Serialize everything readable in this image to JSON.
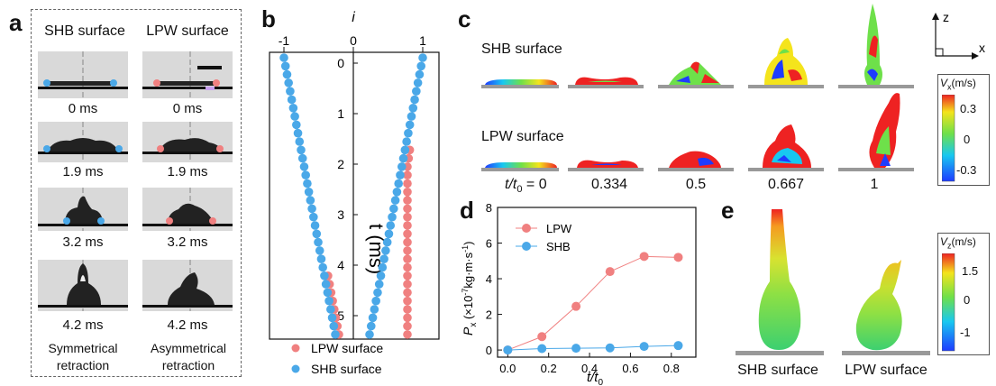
{
  "panel_a": {
    "letter": "a",
    "col_headers": [
      "SHB surface",
      "LPW surface"
    ],
    "times": [
      "0 ms",
      "1.9 ms",
      "3.2 ms",
      "4.2 ms"
    ],
    "captions": [
      [
        "Symmetrical",
        "retraction"
      ],
      [
        "Asymmetrical",
        "retraction"
      ]
    ]
  },
  "panel_b": {
    "letter": "b",
    "top_axis_label": "i",
    "top_ticks": [
      "-1",
      "0",
      "1"
    ],
    "y_label": "t (ms)",
    "y_ticks": [
      "0",
      "1",
      "2",
      "3",
      "4",
      "5"
    ],
    "legend": [
      "LPW surface",
      "SHB surface"
    ],
    "colors": {
      "lpw": "#f08080",
      "shb": "#4aa8e8"
    }
  },
  "panel_c": {
    "letter": "c",
    "row_labels": [
      "SHB surface",
      "LPW surface"
    ],
    "t_prefix": "t/t",
    "t_sub": "0",
    "t_values": [
      "= 0",
      "0.334",
      "0.5",
      "0.667",
      "1"
    ],
    "axes": {
      "z": "z",
      "x": "x"
    },
    "colorbar": {
      "label": "V",
      "sub": "x",
      "unit": "(m/s)",
      "ticks": [
        "0.3",
        "0",
        "-0.3"
      ]
    }
  },
  "panel_d": {
    "letter": "d",
    "chart_data": {
      "type": "line",
      "x": [
        0.0,
        0.167,
        0.334,
        0.5,
        0.667,
        0.834
      ],
      "series": [
        {
          "name": "LPW",
          "values": [
            0.0,
            0.75,
            2.45,
            4.4,
            5.25,
            5.2
          ],
          "color": "#f08080"
        },
        {
          "name": "SHB",
          "values": [
            0.0,
            0.08,
            0.1,
            0.12,
            0.2,
            0.25
          ],
          "color": "#4aa8e8"
        }
      ],
      "xlim": [
        -0.05,
        0.92
      ],
      "ylim": [
        -0.4,
        8
      ],
      "xticks": [
        "0.0",
        "0.2",
        "0.4",
        "0.6",
        "0.8"
      ],
      "yticks": [
        "0",
        "2",
        "4",
        "6",
        "8"
      ],
      "xlabel": "t/t0",
      "ylabel": "Px (×10-7kg·m·s-1)",
      "legend": [
        "LPW",
        "SHB"
      ]
    },
    "xlabel_main": "t/t",
    "xlabel_sub": "0",
    "ylabel_main": "P",
    "ylabel_sub": "x",
    "ylabel_rest": " (×10",
    "ylabel_exp": "-7",
    "ylabel_rest2": "kg·m·s",
    "ylabel_exp2": "-1",
    "ylabel_close": ")"
  },
  "panel_e": {
    "letter": "e",
    "labels": [
      "SHB surface",
      "LPW surface"
    ],
    "colorbar": {
      "label": "V",
      "sub": "z",
      "unit": "(m/s)",
      "ticks": [
        "1.5",
        "0",
        "-1"
      ]
    }
  }
}
